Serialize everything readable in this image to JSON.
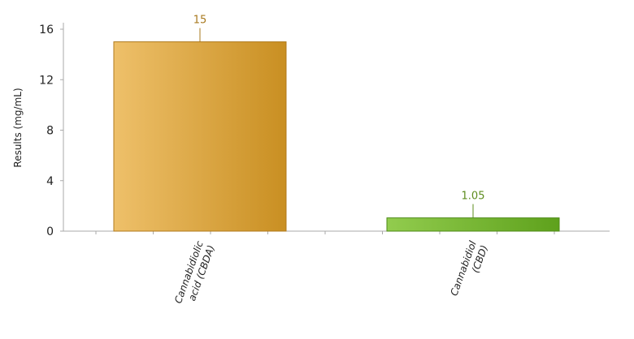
{
  "chart_data": {
    "type": "bar",
    "title": "",
    "xlabel": "",
    "ylabel": "Results (mg/mL)",
    "ylim": [
      0,
      16
    ],
    "yticks": [
      0,
      4,
      8,
      12,
      16
    ],
    "grid": false,
    "categories": [
      [
        "Cannabidiolic",
        "acid (CBDA)"
      ],
      [
        "Cannabidiol",
        "(CBD)"
      ]
    ],
    "values": [
      15,
      1.05
    ],
    "data_labels": [
      "15",
      "1.05"
    ],
    "colors": [
      {
        "light": "#eec06a",
        "dark": "#c98f22",
        "border": "#b07a1c",
        "label": "#a8791e"
      },
      {
        "light": "#92cc4e",
        "dark": "#5ea11c",
        "border": "#4d8a16",
        "label": "#5d8c1e"
      }
    ]
  }
}
